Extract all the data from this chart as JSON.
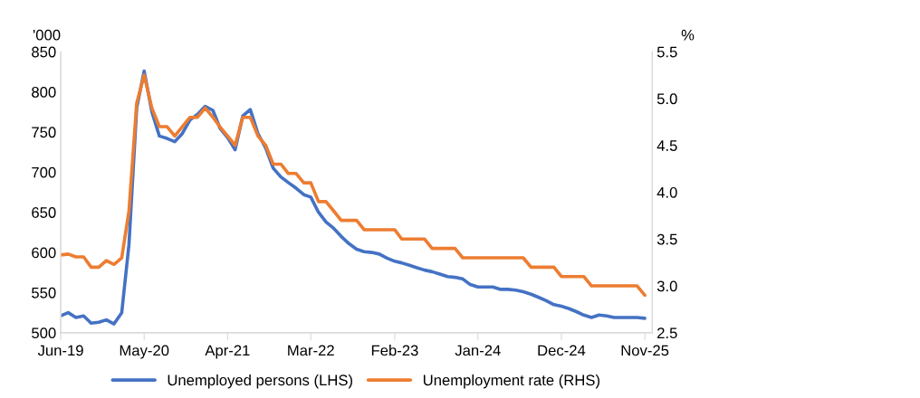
{
  "chart_data": {
    "type": "line",
    "ylabel": "'000",
    "y2label": "%",
    "x": [
      "2019-06",
      "2019-07",
      "2019-08",
      "2019-09",
      "2019-10",
      "2019-11",
      "2019-12",
      "2020-01",
      "2020-02",
      "2020-03",
      "2020-04",
      "2020-05",
      "2020-06",
      "2020-07",
      "2020-08",
      "2020-09",
      "2020-10",
      "2020-11",
      "2020-12",
      "2021-01",
      "2021-02",
      "2021-03",
      "2021-04",
      "2021-05",
      "2021-06",
      "2021-07",
      "2021-08",
      "2021-09",
      "2021-10",
      "2021-11",
      "2021-12",
      "2022-01",
      "2022-02",
      "2022-03",
      "2022-04",
      "2022-05",
      "2022-06",
      "2022-07",
      "2022-08",
      "2022-09",
      "2022-10",
      "2022-11",
      "2022-12",
      "2023-01",
      "2023-02",
      "2023-03",
      "2023-04",
      "2023-05",
      "2023-06",
      "2023-07",
      "2023-08",
      "2023-09",
      "2023-10",
      "2023-11",
      "2023-12",
      "2024-01",
      "2024-02",
      "2024-03",
      "2024-04",
      "2024-05",
      "2024-06",
      "2024-07",
      "2024-08",
      "2024-09",
      "2024-10",
      "2024-11",
      "2024-12",
      "2025-01",
      "2025-02",
      "2025-03",
      "2025-04",
      "2025-05",
      "2025-06",
      "2025-07",
      "2025-08",
      "2025-09",
      "2025-10",
      "2025-11"
    ],
    "series": [
      {
        "name": "Unemployed persons (LHS)",
        "color": "#4472c4",
        "values": [
          521,
          525,
          519,
          521,
          512,
          513,
          516,
          511,
          525,
          610,
          780,
          826,
          775,
          745,
          742,
          738,
          748,
          765,
          772,
          782,
          777,
          755,
          743,
          728,
          770,
          778,
          748,
          730,
          705,
          694,
          687,
          680,
          672,
          669,
          650,
          638,
          630,
          620,
          611,
          604,
          601,
          600,
          598,
          593,
          589,
          587,
          584,
          581,
          578,
          576,
          573,
          570,
          569,
          567,
          560,
          557,
          557,
          557,
          554,
          554,
          553,
          551,
          548,
          544,
          540,
          535,
          533,
          530,
          526,
          522,
          519,
          522,
          521,
          519,
          519,
          519,
          519,
          518
        ]
      },
      {
        "name": "Unemployment rate (RHS)",
        "color": "#ed7d31",
        "axis": "y2",
        "values": [
          3.33,
          3.34,
          3.31,
          3.31,
          3.2,
          3.2,
          3.27,
          3.23,
          3.3,
          3.8,
          4.95,
          5.25,
          4.9,
          4.7,
          4.7,
          4.6,
          4.7,
          4.8,
          4.8,
          4.9,
          4.8,
          4.7,
          4.6,
          4.5,
          4.8,
          4.8,
          4.6,
          4.5,
          4.3,
          4.3,
          4.2,
          4.2,
          4.1,
          4.1,
          3.9,
          3.9,
          3.8,
          3.7,
          3.7,
          3.7,
          3.6,
          3.6,
          3.6,
          3.6,
          3.6,
          3.5,
          3.5,
          3.5,
          3.5,
          3.4,
          3.4,
          3.4,
          3.4,
          3.3,
          3.3,
          3.3,
          3.3,
          3.3,
          3.3,
          3.3,
          3.3,
          3.3,
          3.2,
          3.2,
          3.2,
          3.2,
          3.1,
          3.1,
          3.1,
          3.1,
          3.0,
          3.0,
          3.0,
          3.0,
          3.0,
          3.0,
          3.0,
          2.9
        ]
      }
    ],
    "xlim": [
      "2019-06",
      "2025-12"
    ],
    "xticks": [
      {
        "value": "2019-06",
        "label": "Jun-19"
      },
      {
        "value": "2020-05",
        "label": "May-20"
      },
      {
        "value": "2021-04",
        "label": "Apr-21"
      },
      {
        "value": "2022-03",
        "label": "Mar-22"
      },
      {
        "value": "2023-02",
        "label": "Feb-23"
      },
      {
        "value": "2024-01",
        "label": "Jan-24"
      },
      {
        "value": "2024-12",
        "label": "Dec-24"
      },
      {
        "value": "2025-11",
        "label": "Nov-25"
      }
    ],
    "ylim": [
      500,
      850
    ],
    "yticks": [
      500,
      550,
      600,
      650,
      700,
      750,
      800,
      850
    ],
    "y2lim": [
      2.5,
      5.5
    ],
    "y2ticks": [
      {
        "value": 2.5,
        "label": "2.5"
      },
      {
        "value": 3.0,
        "label": "3.0"
      },
      {
        "value": 3.5,
        "label": "3.5"
      },
      {
        "value": 4.0,
        "label": "4.0"
      },
      {
        "value": 4.5,
        "label": "4.5"
      },
      {
        "value": 5.0,
        "label": "5.0"
      },
      {
        "value": 5.5,
        "label": "5.5"
      }
    ],
    "grid": false,
    "legend": "bottom",
    "marker": "none",
    "line_style": "solid"
  }
}
